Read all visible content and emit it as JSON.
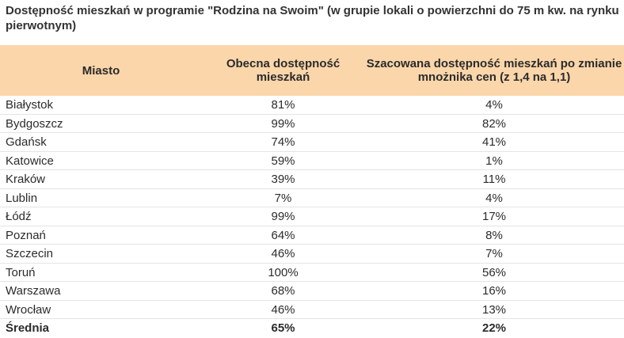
{
  "title": "Dostępność mieszkań w programie \"Rodzina na Swoim\" (w grupie lokali o powierzchni do 75 m kw. na rynku pierwotnym)",
  "header": {
    "col1": "Miasto",
    "col2": "Obecna dostępność mieszkań",
    "col3": "Szacowana dostępność mieszkań po zmianie mnożnika cen (z 1,4 na 1,1)"
  },
  "colors": {
    "header_bg": "#fbd6aa",
    "row_border": "#e4e4e4"
  },
  "chart_data": {
    "type": "table",
    "columns": [
      "Miasto",
      "Obecna dostępność mieszkań",
      "Szacowana dostępność mieszkań po zmianie mnożnika cen (z 1,4 na 1,1)"
    ],
    "rows": [
      {
        "city": "Białystok",
        "current": "81%",
        "estimated": "4%"
      },
      {
        "city": "Bydgoszcz",
        "current": "99%",
        "estimated": "82%"
      },
      {
        "city": "Gdańsk",
        "current": "74%",
        "estimated": "41%"
      },
      {
        "city": "Katowice",
        "current": "59%",
        "estimated": "1%"
      },
      {
        "city": "Kraków",
        "current": "39%",
        "estimated": "11%"
      },
      {
        "city": "Lublin",
        "current": "7%",
        "estimated": "4%"
      },
      {
        "city": "Łódź",
        "current": "99%",
        "estimated": "17%"
      },
      {
        "city": "Poznań",
        "current": "64%",
        "estimated": "8%"
      },
      {
        "city": "Szczecin",
        "current": "46%",
        "estimated": "7%"
      },
      {
        "city": "Toruń",
        "current": "100%",
        "estimated": "56%"
      },
      {
        "city": "Warszawa",
        "current": "68%",
        "estimated": "16%"
      },
      {
        "city": "Wrocław",
        "current": "46%",
        "estimated": "13%"
      }
    ],
    "total": {
      "city": "Średnia",
      "current": "65%",
      "estimated": "22%"
    }
  }
}
